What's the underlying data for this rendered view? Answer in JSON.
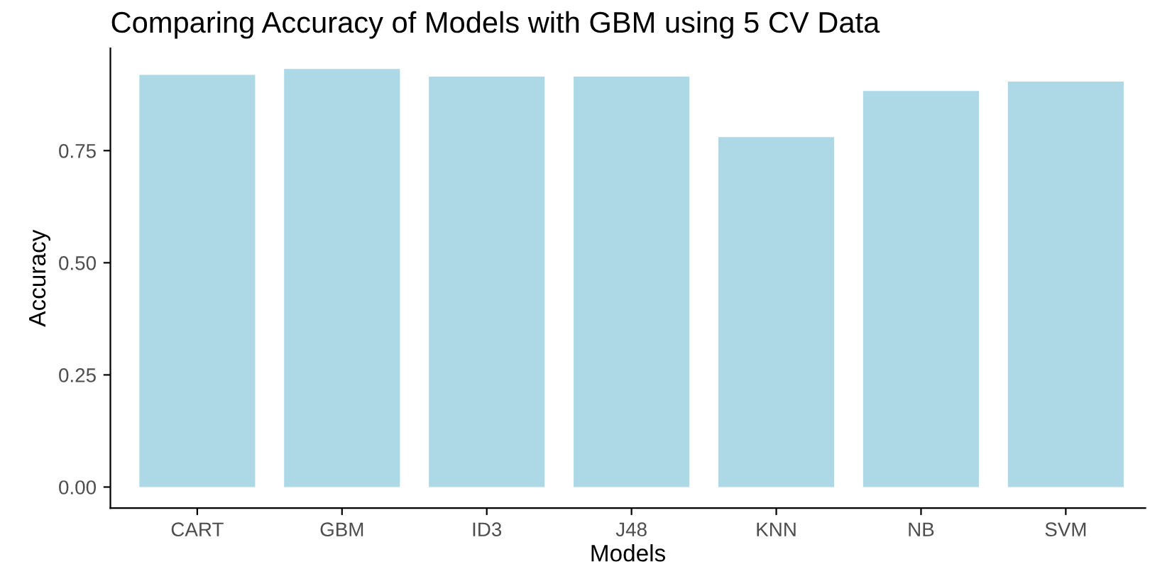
{
  "chart_data": {
    "type": "bar",
    "title": "Comparing Accuracy of Models with GBM using 5 CV Data",
    "xlabel": "Models",
    "ylabel": "Accuracy",
    "categories": [
      "CART",
      "GBM",
      "ID3",
      "J48",
      "KNN",
      "NB",
      "SVM"
    ],
    "values": [
      0.919,
      0.932,
      0.915,
      0.915,
      0.78,
      0.883,
      0.904
    ],
    "color": "#add8e6",
    "ylim": [
      -0.047,
      0.978
    ],
    "yticks": [
      {
        "value": 0,
        "label": "0.00"
      },
      {
        "value": 0.25,
        "label": "0.25"
      },
      {
        "value": 0.5,
        "label": "0.50"
      },
      {
        "value": 0.75,
        "label": "0.75"
      }
    ],
    "grid": false,
    "legend": false
  }
}
